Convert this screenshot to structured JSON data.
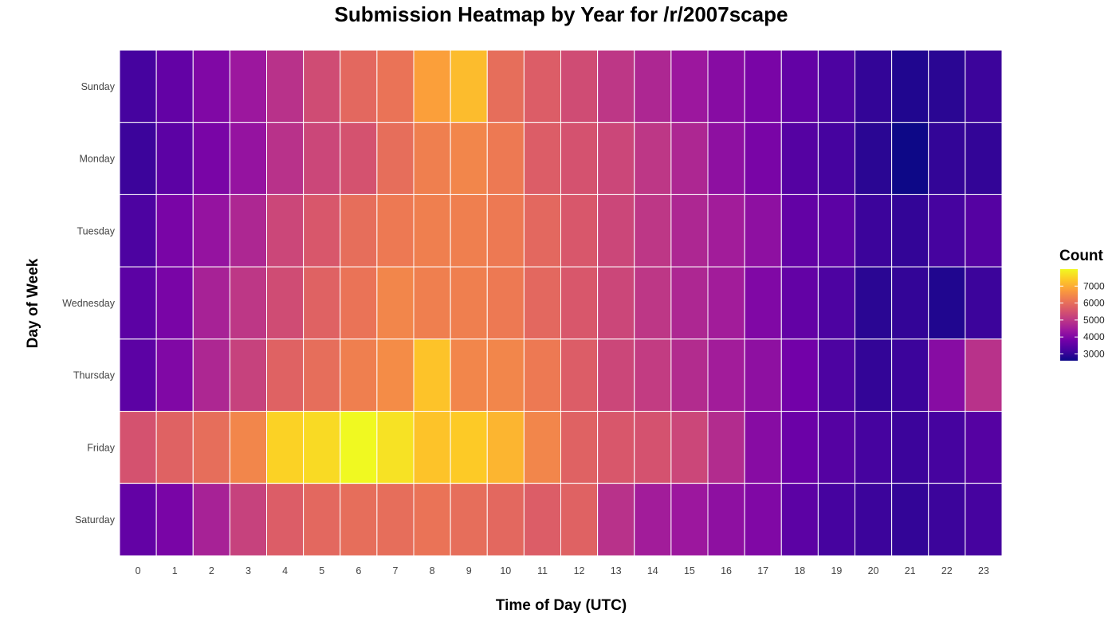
{
  "chart_data": {
    "type": "heatmap",
    "title": "Submission Heatmap by Year for /r/2007scape",
    "xlabel": "Time of Day (UTC)",
    "ylabel": "Day of Week",
    "x": [
      "0",
      "1",
      "2",
      "3",
      "4",
      "5",
      "6",
      "7",
      "8",
      "9",
      "10",
      "11",
      "12",
      "13",
      "14",
      "15",
      "16",
      "17",
      "18",
      "19",
      "20",
      "21",
      "22",
      "23"
    ],
    "y": [
      "Sunday",
      "Monday",
      "Tuesday",
      "Wednesday",
      "Thursday",
      "Friday",
      "Saturday"
    ],
    "values": [
      [
        3200,
        3600,
        4000,
        4400,
        4900,
        5400,
        5900,
        6100,
        6800,
        7200,
        6000,
        5700,
        5400,
        5000,
        4700,
        4400,
        4100,
        3900,
        3600,
        3300,
        3000,
        2800,
        2900,
        3100
      ],
      [
        3100,
        3500,
        3900,
        4300,
        4900,
        5300,
        5500,
        6000,
        6300,
        6400,
        6200,
        5700,
        5500,
        5300,
        5000,
        4700,
        4200,
        3900,
        3400,
        3200,
        2900,
        2600,
        3000,
        3000
      ],
      [
        3300,
        3900,
        4300,
        4700,
        5300,
        5600,
        6000,
        6200,
        6300,
        6300,
        6200,
        5900,
        5600,
        5300,
        5000,
        4700,
        4500,
        4200,
        3600,
        3500,
        3100,
        3000,
        3200,
        3400
      ],
      [
        3500,
        3900,
        4600,
        5000,
        5400,
        5800,
        6100,
        6400,
        6300,
        6300,
        6200,
        5900,
        5600,
        5300,
        5000,
        4700,
        4500,
        4000,
        3600,
        3300,
        2900,
        3000,
        2800,
        3100
      ],
      [
        3500,
        4000,
        4700,
        5200,
        5800,
        6000,
        6300,
        6500,
        7300,
        6400,
        6400,
        6200,
        5700,
        5300,
        5100,
        4800,
        4500,
        4200,
        3800,
        3300,
        3000,
        3100,
        4100,
        4900
      ],
      [
        5500,
        5800,
        6000,
        6400,
        7500,
        7600,
        8000,
        7700,
        7300,
        7400,
        7100,
        6400,
        5800,
        5600,
        5500,
        5300,
        4800,
        4100,
        3700,
        3400,
        3200,
        3100,
        3200,
        3400
      ],
      [
        3600,
        3900,
        4600,
        5200,
        5700,
        5900,
        6000,
        6000,
        6100,
        6000,
        5900,
        5700,
        5800,
        4900,
        4500,
        4400,
        4200,
        4000,
        3500,
        3200,
        3100,
        3000,
        3100,
        3200
      ]
    ],
    "color_scale": {
      "name": "plasma",
      "title": "Count",
      "ticks": [
        7000,
        6000,
        5000,
        4000,
        3000
      ],
      "min": 2600,
      "max": 8000,
      "stops": [
        "#0d0887",
        "#46039f",
        "#7201a8",
        "#9c179e",
        "#bd3786",
        "#d8576b",
        "#ed7953",
        "#fb9f3a",
        "#fdca26",
        "#f0f921"
      ]
    },
    "legend": "right"
  }
}
